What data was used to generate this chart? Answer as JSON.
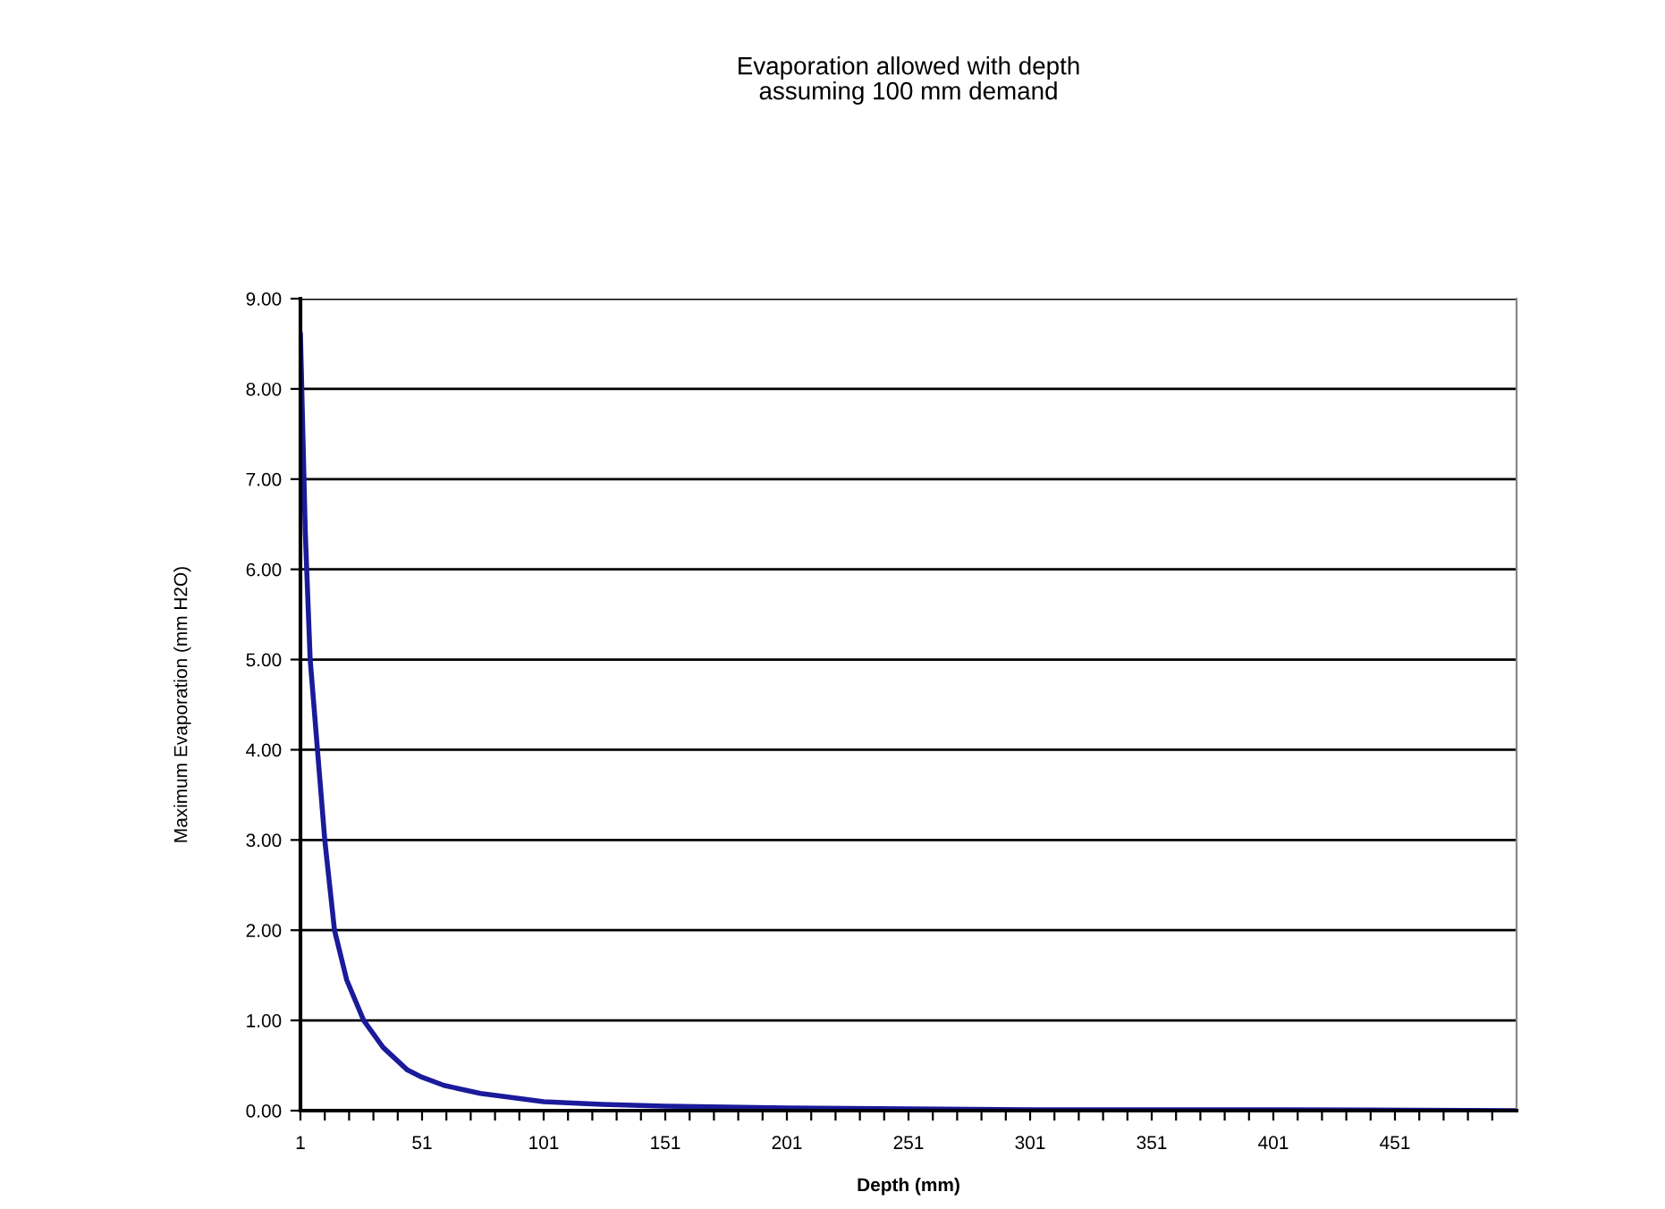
{
  "chart_data": {
    "type": "line",
    "title": "Evaporation allowed with depth\nassuming 100 mm demand",
    "xlabel": "Depth (mm)",
    "ylabel": "Maximum Evaporation (mm H2O)",
    "x": [
      1,
      2,
      3,
      5,
      8,
      11,
      15,
      20,
      27,
      35,
      45,
      51,
      60,
      75,
      101,
      125,
      151,
      201,
      251,
      301,
      401,
      500
    ],
    "series": [
      {
        "color": "#1a1a9a",
        "values": [
          8.6,
          7.5,
          6.4,
          5.0,
          4.0,
          3.0,
          2.0,
          1.45,
          1.0,
          0.7,
          0.45,
          0.37,
          0.28,
          0.19,
          0.1,
          0.07,
          0.05,
          0.03,
          0.02,
          0.01,
          0.01,
          0.0
        ]
      }
    ],
    "xlim": [
      1,
      501
    ],
    "xticks": [
      {
        "value": 1,
        "label": "1"
      },
      {
        "value": 11,
        "label": null
      },
      {
        "value": 21,
        "label": null
      },
      {
        "value": 31,
        "label": null
      },
      {
        "value": 41,
        "label": null
      },
      {
        "value": 51,
        "label": "51"
      },
      {
        "value": 61,
        "label": null
      },
      {
        "value": 71,
        "label": null
      },
      {
        "value": 81,
        "label": null
      },
      {
        "value": 91,
        "label": null
      },
      {
        "value": 101,
        "label": "101"
      },
      {
        "value": 111,
        "label": null
      },
      {
        "value": 121,
        "label": null
      },
      {
        "value": 131,
        "label": null
      },
      {
        "value": 141,
        "label": null
      },
      {
        "value": 151,
        "label": "151"
      },
      {
        "value": 161,
        "label": null
      },
      {
        "value": 171,
        "label": null
      },
      {
        "value": 181,
        "label": null
      },
      {
        "value": 191,
        "label": null
      },
      {
        "value": 201,
        "label": "201"
      },
      {
        "value": 211,
        "label": null
      },
      {
        "value": 221,
        "label": null
      },
      {
        "value": 231,
        "label": null
      },
      {
        "value": 241,
        "label": null
      },
      {
        "value": 251,
        "label": "251"
      },
      {
        "value": 261,
        "label": null
      },
      {
        "value": 271,
        "label": null
      },
      {
        "value": 281,
        "label": null
      },
      {
        "value": 291,
        "label": null
      },
      {
        "value": 301,
        "label": "301"
      },
      {
        "value": 311,
        "label": null
      },
      {
        "value": 321,
        "label": null
      },
      {
        "value": 331,
        "label": null
      },
      {
        "value": 341,
        "label": null
      },
      {
        "value": 351,
        "label": "351"
      },
      {
        "value": 361,
        "label": null
      },
      {
        "value": 371,
        "label": null
      },
      {
        "value": 381,
        "label": null
      },
      {
        "value": 391,
        "label": null
      },
      {
        "value": 401,
        "label": "401"
      },
      {
        "value": 411,
        "label": null
      },
      {
        "value": 421,
        "label": null
      },
      {
        "value": 431,
        "label": null
      },
      {
        "value": 441,
        "label": null
      },
      {
        "value": 451,
        "label": "451"
      },
      {
        "value": 461,
        "label": null
      },
      {
        "value": 471,
        "label": null
      },
      {
        "value": 481,
        "label": null
      },
      {
        "value": 491,
        "label": null
      }
    ],
    "ylim": [
      0,
      9
    ],
    "yticks": [
      {
        "value": 0,
        "label": "0.00"
      },
      {
        "value": 1,
        "label": "1.00"
      },
      {
        "value": 2,
        "label": "2.00"
      },
      {
        "value": 3,
        "label": "3.00"
      },
      {
        "value": 4,
        "label": "4.00"
      },
      {
        "value": 5,
        "label": "5.00"
      },
      {
        "value": 6,
        "label": "6.00"
      },
      {
        "value": 7,
        "label": "7.00"
      },
      {
        "value": 8,
        "label": "8.00"
      },
      {
        "value": 9,
        "label": "9.00"
      }
    ],
    "grid": "y",
    "legend": false,
    "marker": "none",
    "line_style": "solid"
  }
}
